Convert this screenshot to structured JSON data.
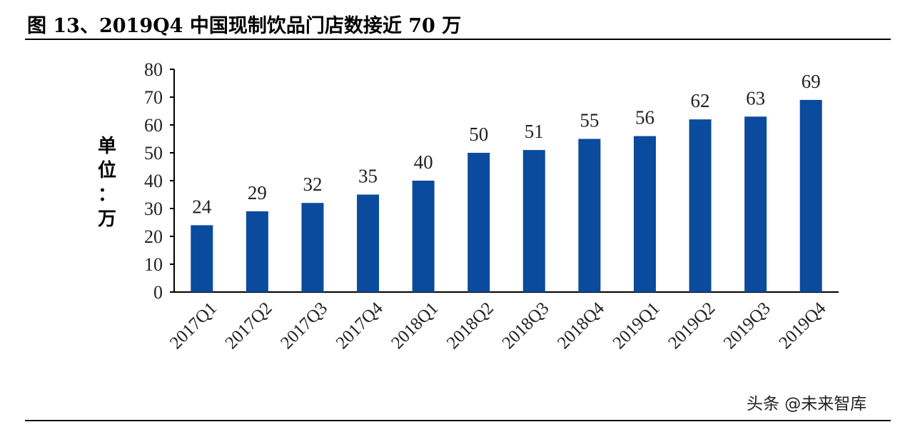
{
  "title": "图 13、2019Q4 中国现制饮品门店数接近 70 万",
  "watermark": "头条 @未来智库",
  "chart_data": {
    "type": "bar",
    "categories": [
      "2017Q1",
      "2017Q2",
      "2017Q3",
      "2017Q4",
      "2018Q1",
      "2018Q2",
      "2018Q3",
      "2018Q4",
      "2019Q1",
      "2019Q2",
      "2019Q3",
      "2019Q4"
    ],
    "values": [
      24,
      29,
      32,
      35,
      40,
      50,
      51,
      55,
      56,
      62,
      63,
      69
    ],
    "ylabel_chars": [
      "单",
      "位",
      "：",
      "万"
    ],
    "ylim": [
      0,
      80
    ],
    "yticks": [
      0,
      10,
      20,
      30,
      40,
      50,
      60,
      70,
      80
    ],
    "bar_color": "#0B4B9E",
    "grid": false,
    "legend": "none"
  }
}
